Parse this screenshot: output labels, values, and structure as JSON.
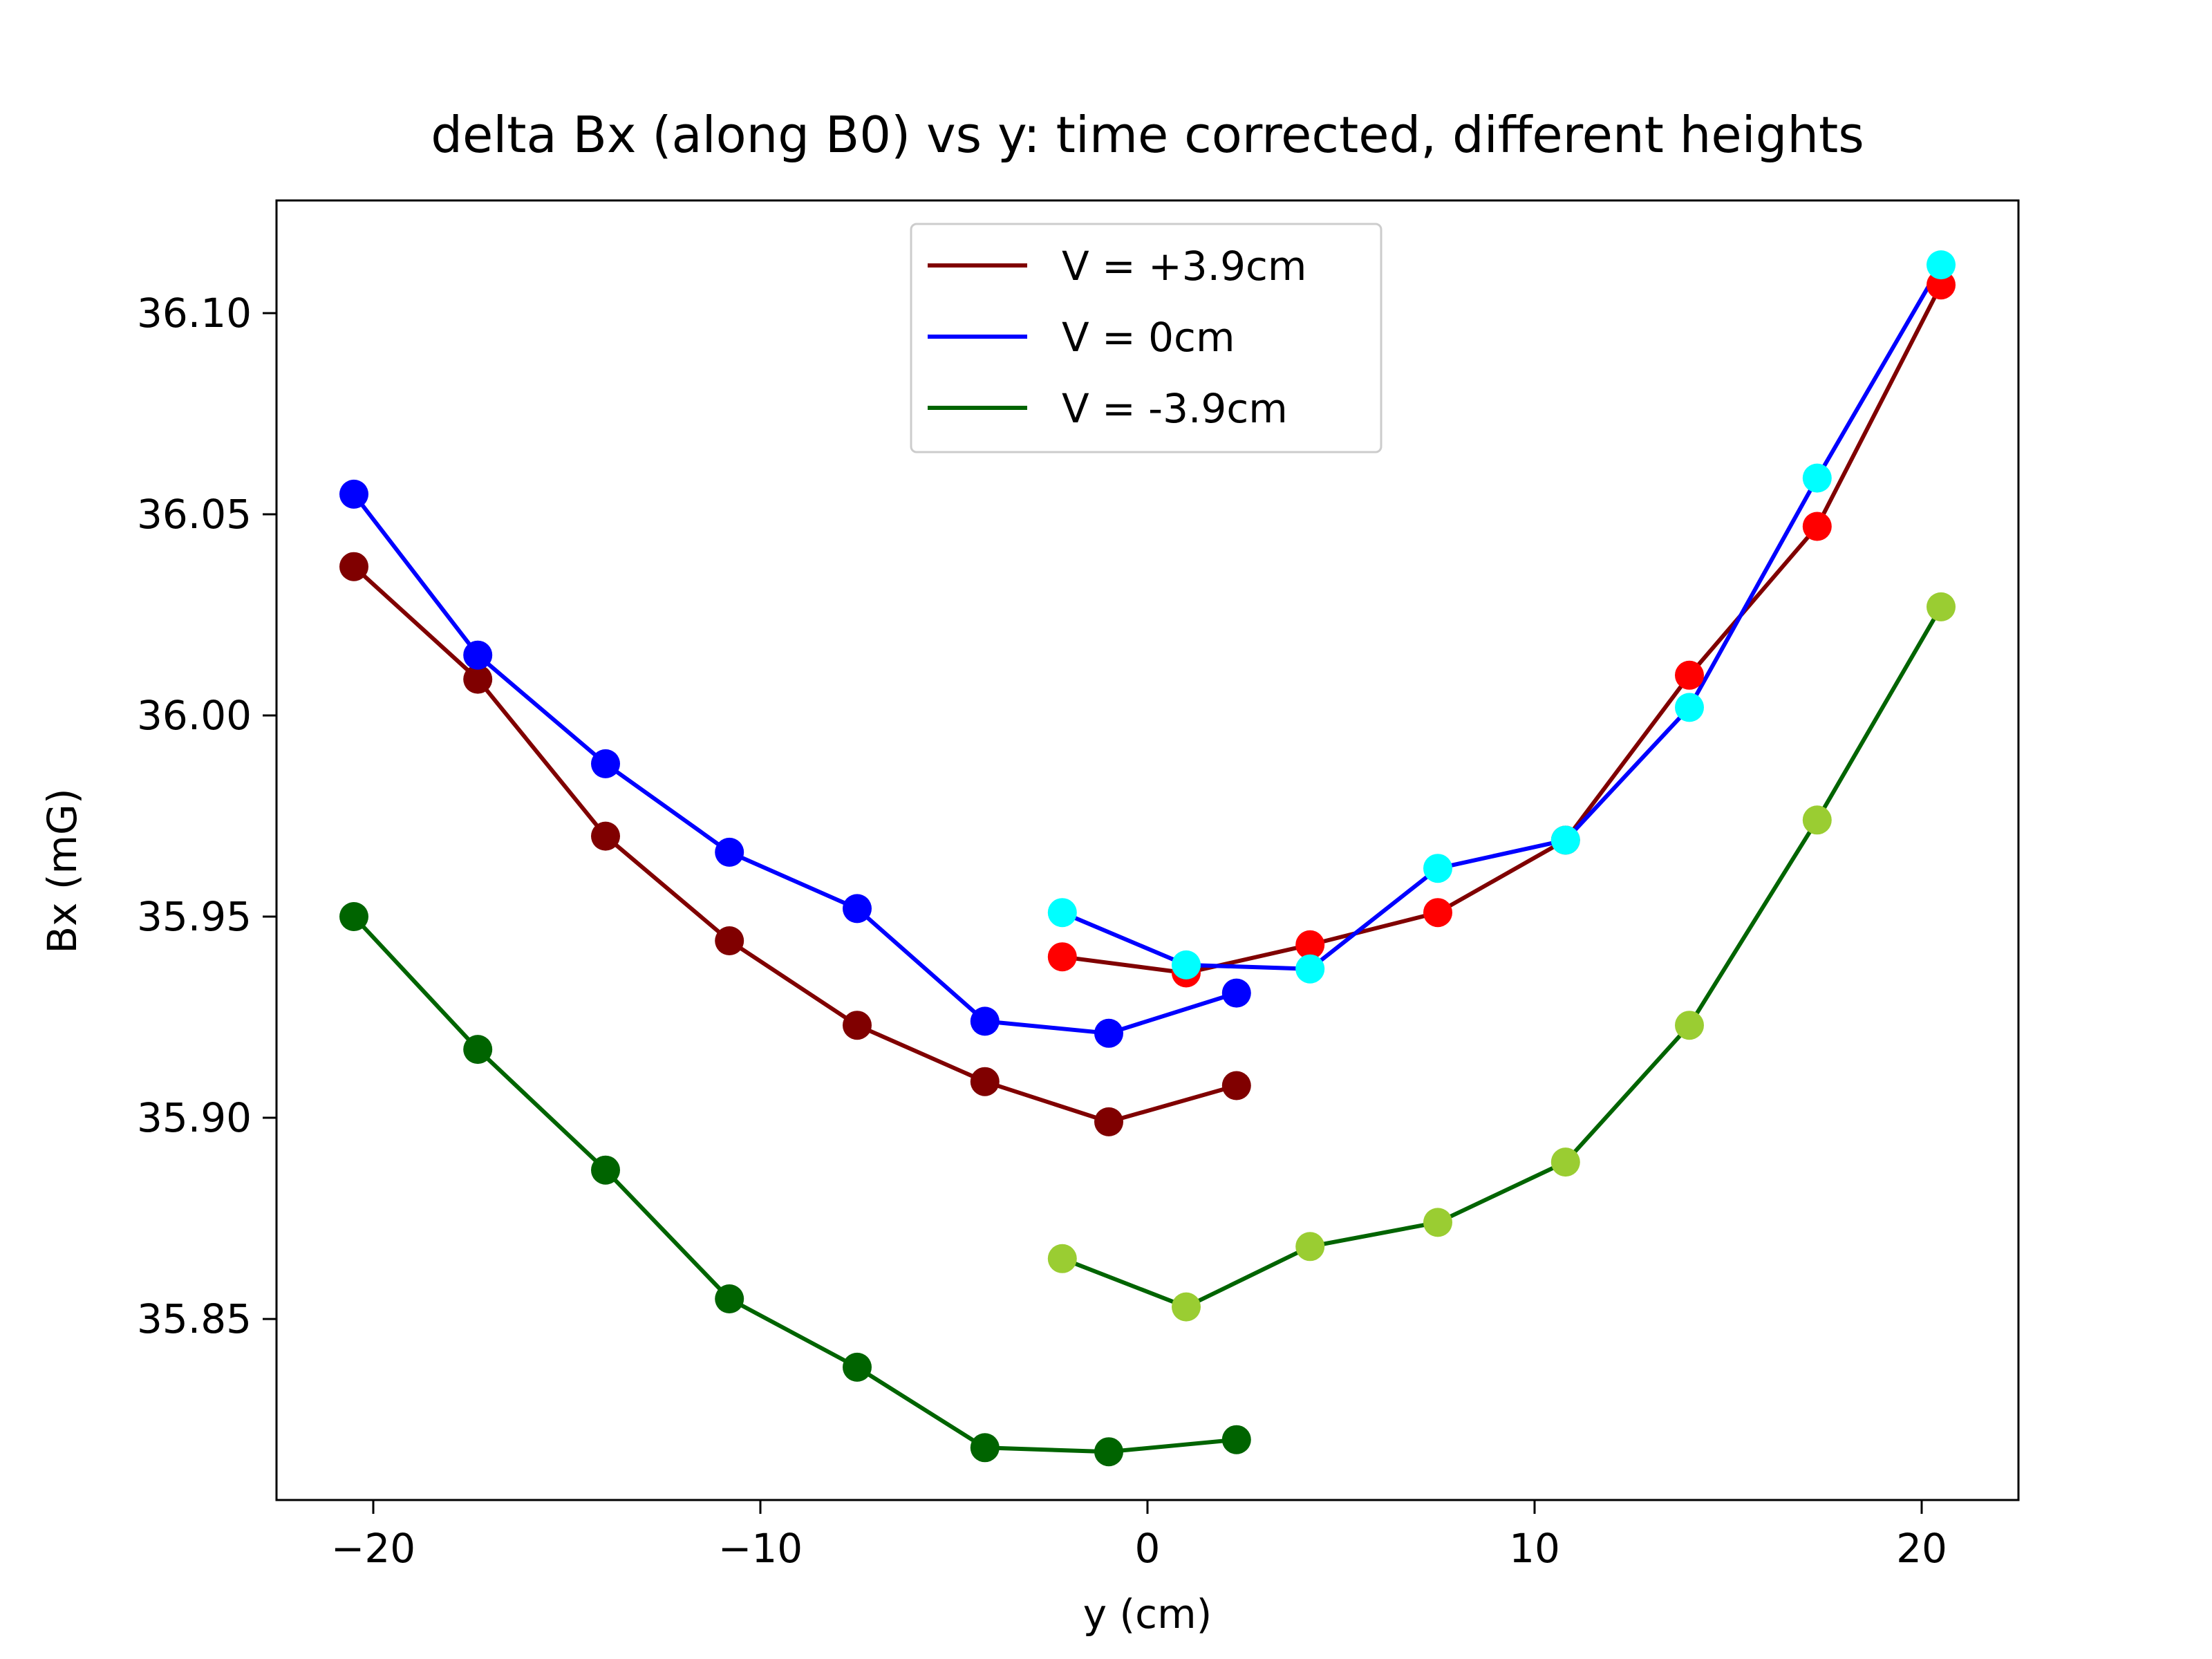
{
  "chart_data": {
    "type": "line",
    "title": "delta Bx (along B0) vs y: time corrected, different heights",
    "xlabel": "y (cm)",
    "ylabel": "Bx (mG)",
    "xlim": [
      -22.5,
      22.5
    ],
    "ylim": [
      35.805,
      36.128
    ],
    "xticks": [
      -20,
      -10,
      0,
      10,
      20
    ],
    "yticks": [
      35.85,
      35.9,
      35.95,
      36.0,
      36.05,
      36.1
    ],
    "xtick_labels": [
      "−20",
      "−10",
      "0",
      "10",
      "20"
    ],
    "ytick_labels": [
      "35.85",
      "35.90",
      "35.95",
      "36.00",
      "36.05",
      "36.10"
    ],
    "legend_position": "top-center",
    "grid": false,
    "series": [
      {
        "name": "V = +3.9cm",
        "line_color": "#800000",
        "segments": [
          {
            "marker_color": "#800000",
            "x": [
              -20.5,
              -17.3,
              -14.0,
              -10.8,
              -7.5,
              -4.2,
              -1.0,
              2.3
            ],
            "y": [
              36.037,
              36.009,
              35.97,
              35.944,
              35.923,
              35.909,
              35.899,
              35.908
            ]
          },
          {
            "marker_color": "#ff0000",
            "x": [
              -2.2,
              1.0,
              4.2,
              7.5,
              10.8,
              14.0,
              17.3,
              20.5
            ],
            "y": [
              35.94,
              35.936,
              35.943,
              35.951,
              35.969,
              36.01,
              36.047,
              36.107
            ]
          }
        ]
      },
      {
        "name": "V = 0cm",
        "line_color": "#0000ff",
        "segments": [
          {
            "marker_color": "#0000ff",
            "x": [
              -20.5,
              -17.3,
              -14.0,
              -10.8,
              -7.5,
              -4.2,
              -1.0,
              2.3
            ],
            "y": [
              36.055,
              36.015,
              35.988,
              35.966,
              35.952,
              35.924,
              35.921,
              35.931
            ]
          },
          {
            "marker_color": "#00ffff",
            "x": [
              -2.2,
              1.0,
              4.2,
              7.5,
              10.8,
              14.0,
              17.3,
              20.5
            ],
            "y": [
              35.951,
              35.938,
              35.937,
              35.962,
              35.969,
              36.002,
              36.059,
              36.112
            ]
          }
        ]
      },
      {
        "name": "V = -3.9cm",
        "line_color": "#006400",
        "segments": [
          {
            "marker_color": "#006400",
            "x": [
              -20.5,
              -17.3,
              -14.0,
              -10.8,
              -7.5,
              -4.2,
              -1.0,
              2.3
            ],
            "y": [
              35.95,
              35.917,
              35.887,
              35.855,
              35.838,
              35.818,
              35.817,
              35.82
            ]
          },
          {
            "marker_color": "#9acd32",
            "x": [
              -2.2,
              1.0,
              4.2,
              7.5,
              10.8,
              14.0,
              17.3,
              20.5
            ],
            "y": [
              35.865,
              35.853,
              35.868,
              35.874,
              35.889,
              35.923,
              35.974,
              36.027
            ]
          }
        ]
      }
    ]
  }
}
